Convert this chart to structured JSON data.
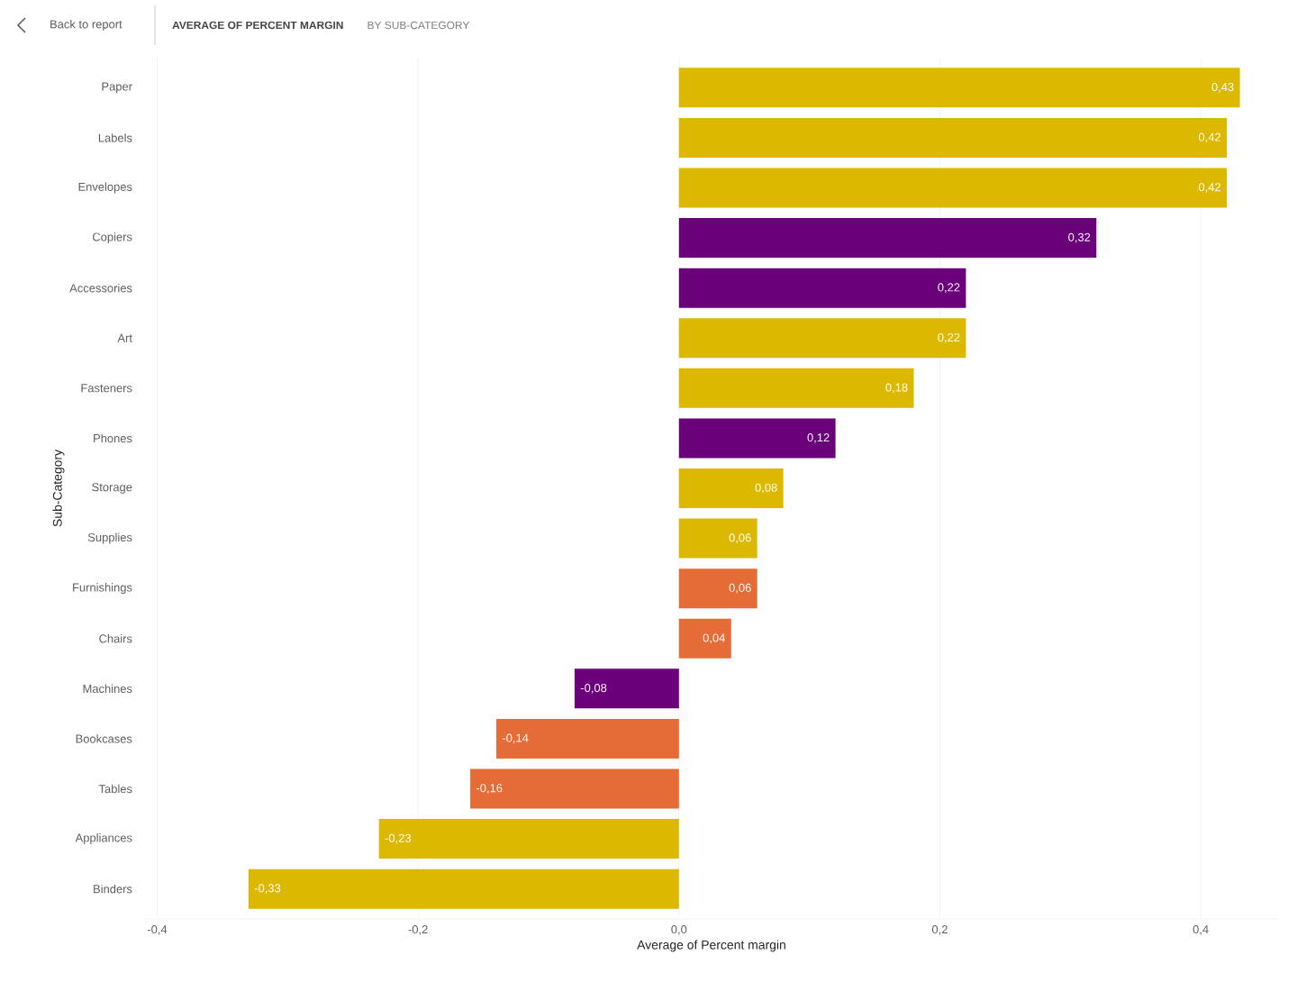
{
  "chart_data": {
    "type": "bar",
    "orientation": "horizontal",
    "title": "AVERAGE OF PERCENT MARGIN",
    "subtitle": "BY SUB-CATEGORY",
    "annotations": [
      "Back to report"
    ],
    "xlabel": "Average of Percent margin",
    "ylabel": "Sub-Category",
    "categories": [
      "Paper",
      "Labels",
      "Envelopes",
      "Copiers",
      "Accessories",
      "Art",
      "Fasteners",
      "Phones",
      "Storage",
      "Supplies",
      "Furnishings",
      "Chairs",
      "Machines",
      "Bookcases",
      "Tables",
      "Appliances",
      "Binders"
    ],
    "values": [
      0.43,
      0.42,
      0.42,
      0.32,
      0.22,
      0.22,
      0.18,
      0.12,
      0.08,
      0.06,
      0.06,
      0.04,
      -0.08,
      -0.14,
      -0.16,
      -0.23,
      -0.33
    ],
    "value_labels": [
      "0,43",
      "0,42",
      "0,42",
      "0,32",
      "0,22",
      "0,22",
      "0,18",
      "0,12",
      "0,08",
      "0,06",
      "0,06",
      "0,04",
      "-0,08",
      "-0,14",
      "-0,16",
      "-0,23",
      "-0,33"
    ],
    "colors": [
      "#dcb800",
      "#dcb800",
      "#dcb800",
      "#6b007b",
      "#6b007b",
      "#dcb800",
      "#dcb800",
      "#6b007b",
      "#dcb800",
      "#dcb800",
      "#e66c37",
      "#e66c37",
      "#6b007b",
      "#e66c37",
      "#e66c37",
      "#dcb800",
      "#dcb800"
    ],
    "xlim": [
      -0.41,
      0.46
    ],
    "xticks": [
      {
        "value": -0.4,
        "label": "-0,4"
      },
      {
        "value": -0.2,
        "label": "-0,2"
      },
      {
        "value": 0,
        "label": "0,0"
      },
      {
        "value": 0.2,
        "label": "0,2"
      },
      {
        "value": 0.4,
        "label": "0,4"
      }
    ],
    "grid": "x"
  }
}
